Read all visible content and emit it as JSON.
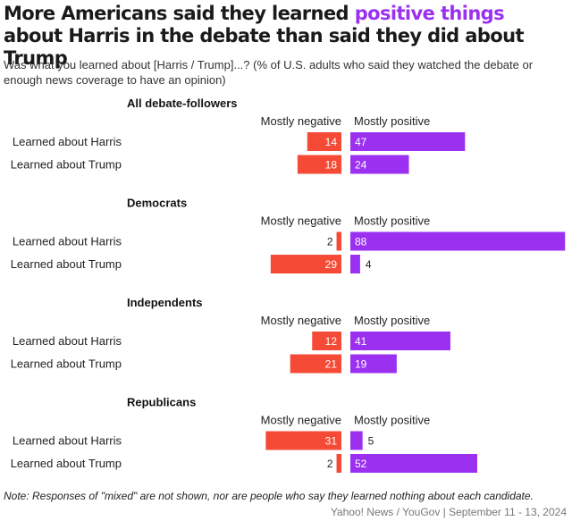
{
  "header": {
    "title_part1": "More Americans said they learned ",
    "title_highlight": "positive things",
    "title_part2": " about Harris in the debate than said they did about Trump",
    "subtitle": "Was what you learned about [Harris / Trump]...? (% of U.S. adults who said they watched the debate or enough news coverage to have an opinion)"
  },
  "chart_data": {
    "type": "bar",
    "orientation": "horizontal-diverging",
    "negative_label": "Mostly negative",
    "positive_label": "Mostly positive",
    "negative_color": "#f54a35",
    "positive_color": "#9b30f0",
    "categories": [
      "Learned about Harris",
      "Learned about Trump"
    ],
    "groups": [
      {
        "name": "All debate-followers",
        "rows": [
          {
            "label": "Learned about Harris",
            "negative": 14,
            "positive": 47
          },
          {
            "label": "Learned about Trump",
            "negative": 18,
            "positive": 24
          }
        ]
      },
      {
        "name": "Democrats",
        "rows": [
          {
            "label": "Learned about Harris",
            "negative": 2,
            "positive": 88
          },
          {
            "label": "Learned about Trump",
            "negative": 29,
            "positive": 4
          }
        ]
      },
      {
        "name": "Independents",
        "rows": [
          {
            "label": "Learned about Harris",
            "negative": 12,
            "positive": 41
          },
          {
            "label": "Learned about Trump",
            "negative": 21,
            "positive": 19
          }
        ]
      },
      {
        "name": "Republicans",
        "rows": [
          {
            "label": "Learned about Harris",
            "negative": 31,
            "positive": 5
          },
          {
            "label": "Learned about Trump",
            "negative": 2,
            "positive": 52
          }
        ]
      }
    ]
  },
  "footer": {
    "note": "Note: Responses of \"mixed\" are not shown, nor are people who say they learned nothing about each candidate.",
    "source": "Yahoo! News / YouGov | September 11 - 13, 2024"
  }
}
